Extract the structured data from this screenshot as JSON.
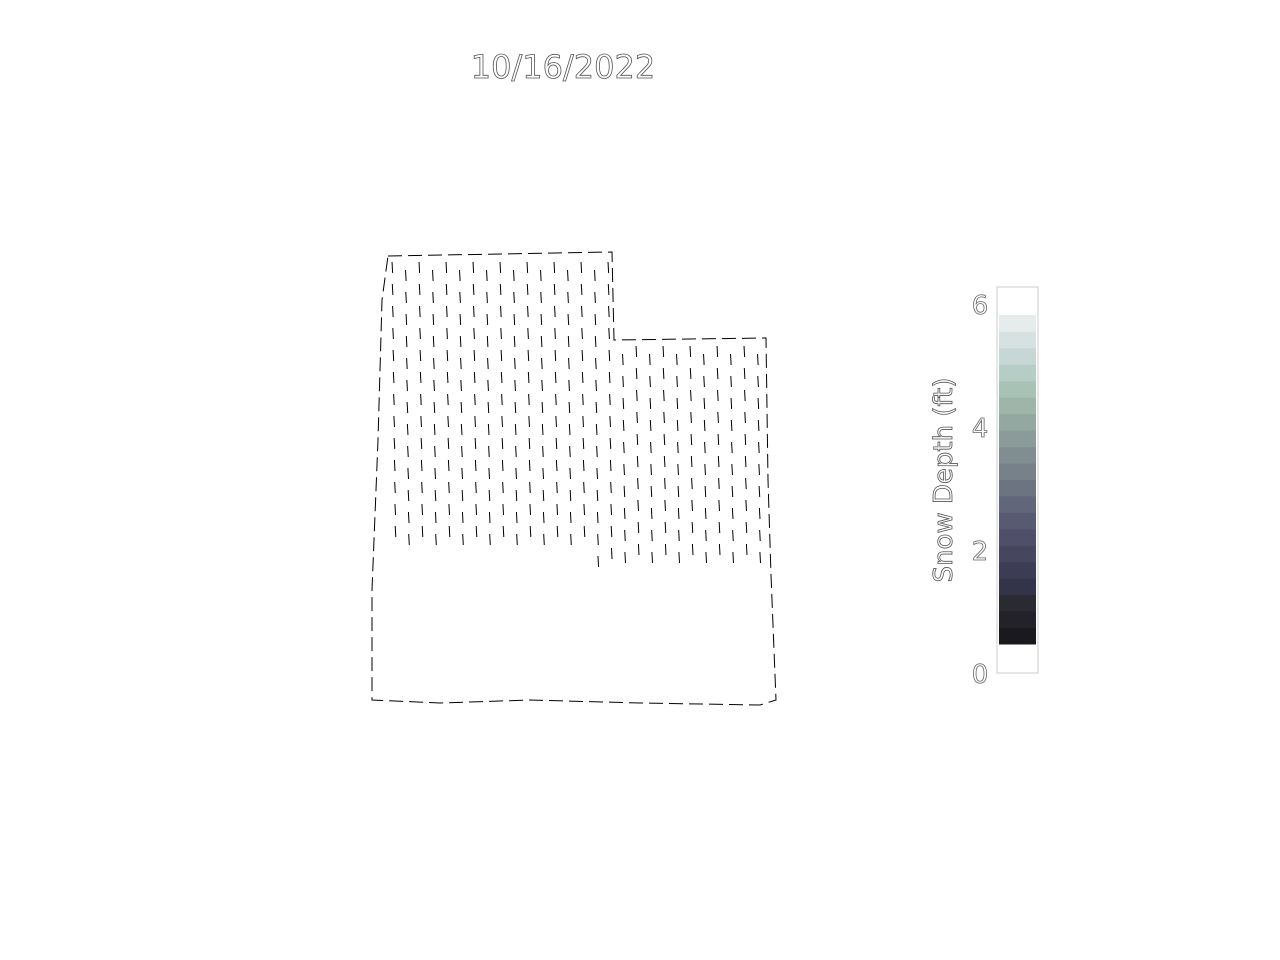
{
  "map": {
    "date_label": "10/16/2022",
    "region": "",
    "cells": "grid of snow-depth cells; upper portion shaded (light), lower band empty"
  },
  "colorbar": {
    "label": "Snow Depth (ft)",
    "min": 0,
    "max": 6,
    "ticks": [
      "0",
      "2",
      "4",
      "6"
    ],
    "colors": [
      "#1a1a1e",
      "#222228",
      "#2a2a33",
      "#33334a",
      "#3c3c55",
      "#46465f",
      "#4f4f6a",
      "#585a72",
      "#62667a",
      "#6c7482",
      "#76818a",
      "#808e92",
      "#8a9b9a",
      "#94a8a2",
      "#9eb5aa",
      "#a8c2b6",
      "#b6cdc6",
      "#c6d7d6",
      "#d6e2e2",
      "#e6ecec"
    ]
  }
}
